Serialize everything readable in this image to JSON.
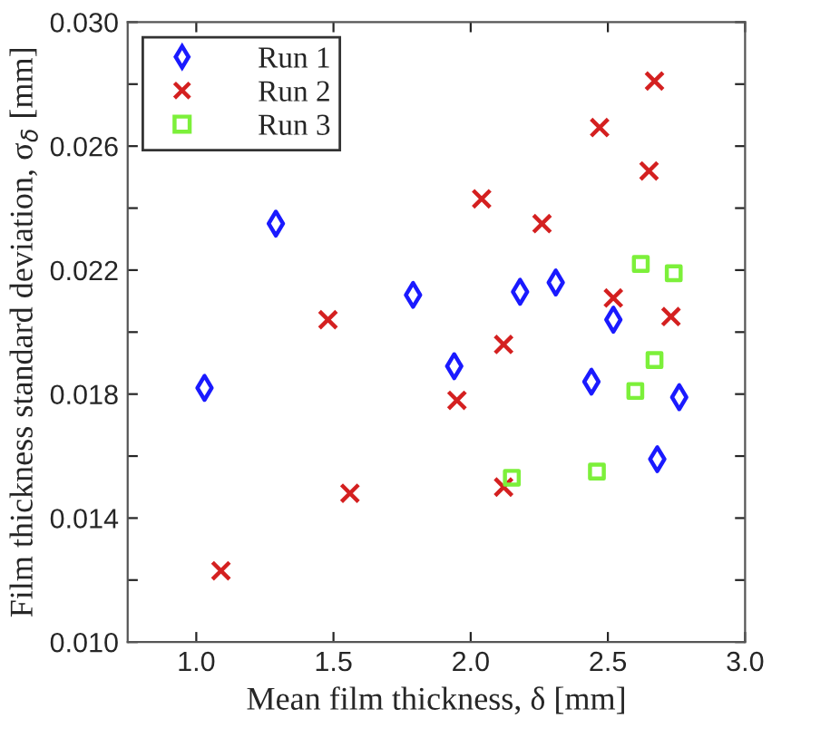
{
  "chart_data": {
    "type": "scatter",
    "xlabel": "Mean film thickness, δ [mm]",
    "ylabel": "Film thickness standard deviation, σ$_{δ}$ [mm]",
    "xlim": [
      0.75,
      3.0
    ],
    "xticks": [
      {
        "value": 1.0,
        "label": "1.0"
      },
      {
        "value": 1.5,
        "label": "1.5"
      },
      {
        "value": 2.0,
        "label": "2.0"
      },
      {
        "value": 2.5,
        "label": "2.5"
      },
      {
        "value": 3.0,
        "label": "3.0"
      }
    ],
    "ylim": [
      0.01,
      0.03
    ],
    "yticks": [
      {
        "value": 0.01,
        "label": "0.010"
      },
      {
        "value": 0.012,
        "label": null
      },
      {
        "value": 0.014,
        "label": "0.014"
      },
      {
        "value": 0.016,
        "label": null
      },
      {
        "value": 0.018,
        "label": "0.018"
      },
      {
        "value": 0.02,
        "label": null
      },
      {
        "value": 0.022,
        "label": "0.022"
      },
      {
        "value": 0.024,
        "label": null
      },
      {
        "value": 0.026,
        "label": "0.026"
      },
      {
        "value": 0.028,
        "label": null
      },
      {
        "value": 0.03,
        "label": "0.030"
      }
    ],
    "grid": false,
    "legend": "top left",
    "series": [
      {
        "name": "Run 1",
        "color": "#1a1aff",
        "marker": "diamond",
        "x": [
          1.03,
          1.29,
          1.79,
          1.94,
          2.18,
          2.31,
          2.44,
          2.52,
          2.68,
          2.76
        ],
        "values": [
          0.0182,
          0.0235,
          0.0212,
          0.0189,
          0.0213,
          0.0216,
          0.0184,
          0.0204,
          0.0159,
          0.0179
        ]
      },
      {
        "name": "Run 2",
        "color": "#d42020",
        "marker": "cross",
        "x": [
          1.09,
          1.48,
          1.56,
          1.95,
          2.04,
          2.12,
          2.12,
          2.26,
          2.47,
          2.52,
          2.65,
          2.67,
          2.73
        ],
        "values": [
          0.0123,
          0.0204,
          0.0148,
          0.0178,
          0.0243,
          0.0196,
          0.015,
          0.0235,
          0.0266,
          0.0211,
          0.0252,
          0.0281,
          0.0205
        ]
      },
      {
        "name": "Run 3",
        "color": "#7cf03a",
        "marker": "square",
        "x": [
          2.15,
          2.46,
          2.6,
          2.62,
          2.67,
          2.74
        ],
        "values": [
          0.0153,
          0.0155,
          0.0181,
          0.0222,
          0.0191,
          0.0219
        ]
      }
    ]
  }
}
